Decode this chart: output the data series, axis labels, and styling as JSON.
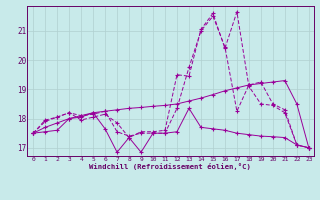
{
  "xlabel": "Windchill (Refroidissement éolien,°C)",
  "bg_color": "#c8eaea",
  "line_color": "#990099",
  "grid_color": "#b0d0d0",
  "axis_color": "#660066",
  "xlim_min": -0.5,
  "xlim_max": 23.4,
  "ylim_min": 16.72,
  "ylim_max": 21.85,
  "xticks": [
    0,
    1,
    2,
    3,
    4,
    5,
    6,
    7,
    8,
    9,
    10,
    11,
    12,
    13,
    14,
    15,
    16,
    17,
    18,
    19,
    20,
    21,
    22,
    23
  ],
  "yticks": [
    17,
    18,
    19,
    20,
    21
  ],
  "s1_x": [
    0,
    1,
    2,
    3,
    4,
    5,
    6,
    7,
    8,
    9,
    10,
    11,
    12,
    13,
    14,
    15,
    16,
    17,
    18,
    19,
    20,
    21,
    22,
    23
  ],
  "s1_y": [
    17.5,
    17.55,
    17.6,
    18.0,
    18.05,
    18.2,
    17.65,
    16.85,
    17.35,
    16.85,
    17.5,
    17.5,
    17.55,
    18.35,
    17.7,
    17.65,
    17.6,
    17.5,
    17.45,
    17.4,
    17.38,
    17.35,
    17.1,
    17.0
  ],
  "s2_x": [
    0,
    1,
    2,
    3,
    4,
    5,
    6,
    7,
    8,
    9,
    10,
    11,
    12,
    13,
    14,
    15,
    16,
    17,
    18,
    19,
    20,
    21,
    22,
    23
  ],
  "s2_y": [
    17.5,
    17.7,
    17.85,
    18.0,
    18.1,
    18.2,
    18.25,
    18.3,
    18.35,
    18.38,
    18.42,
    18.45,
    18.5,
    18.6,
    18.7,
    18.82,
    18.95,
    19.05,
    19.15,
    19.2,
    19.25,
    19.3,
    18.5,
    17.0
  ],
  "s3_x": [
    0,
    1,
    2,
    3,
    4,
    5,
    6,
    7,
    8,
    9,
    10,
    11,
    12,
    13,
    14,
    15,
    16,
    17,
    18,
    19,
    20,
    21,
    22,
    23
  ],
  "s3_y": [
    17.5,
    17.95,
    18.05,
    18.2,
    18.1,
    18.15,
    18.25,
    17.55,
    17.4,
    17.5,
    17.5,
    17.5,
    18.35,
    19.75,
    21.0,
    21.5,
    20.45,
    18.25,
    19.15,
    19.25,
    18.5,
    18.3,
    17.1,
    17.0
  ],
  "s4_x": [
    0,
    1,
    2,
    3,
    4,
    5,
    6,
    7,
    8,
    9,
    10,
    11,
    12,
    13,
    14,
    15,
    16,
    17,
    18,
    19,
    20,
    21,
    22,
    23
  ],
  "s4_y": [
    17.5,
    17.9,
    18.05,
    18.2,
    17.95,
    18.05,
    18.15,
    17.85,
    17.35,
    17.55,
    17.55,
    17.6,
    19.5,
    19.45,
    21.05,
    21.6,
    20.4,
    21.65,
    19.1,
    18.5,
    18.45,
    18.2,
    17.1,
    17.0
  ]
}
